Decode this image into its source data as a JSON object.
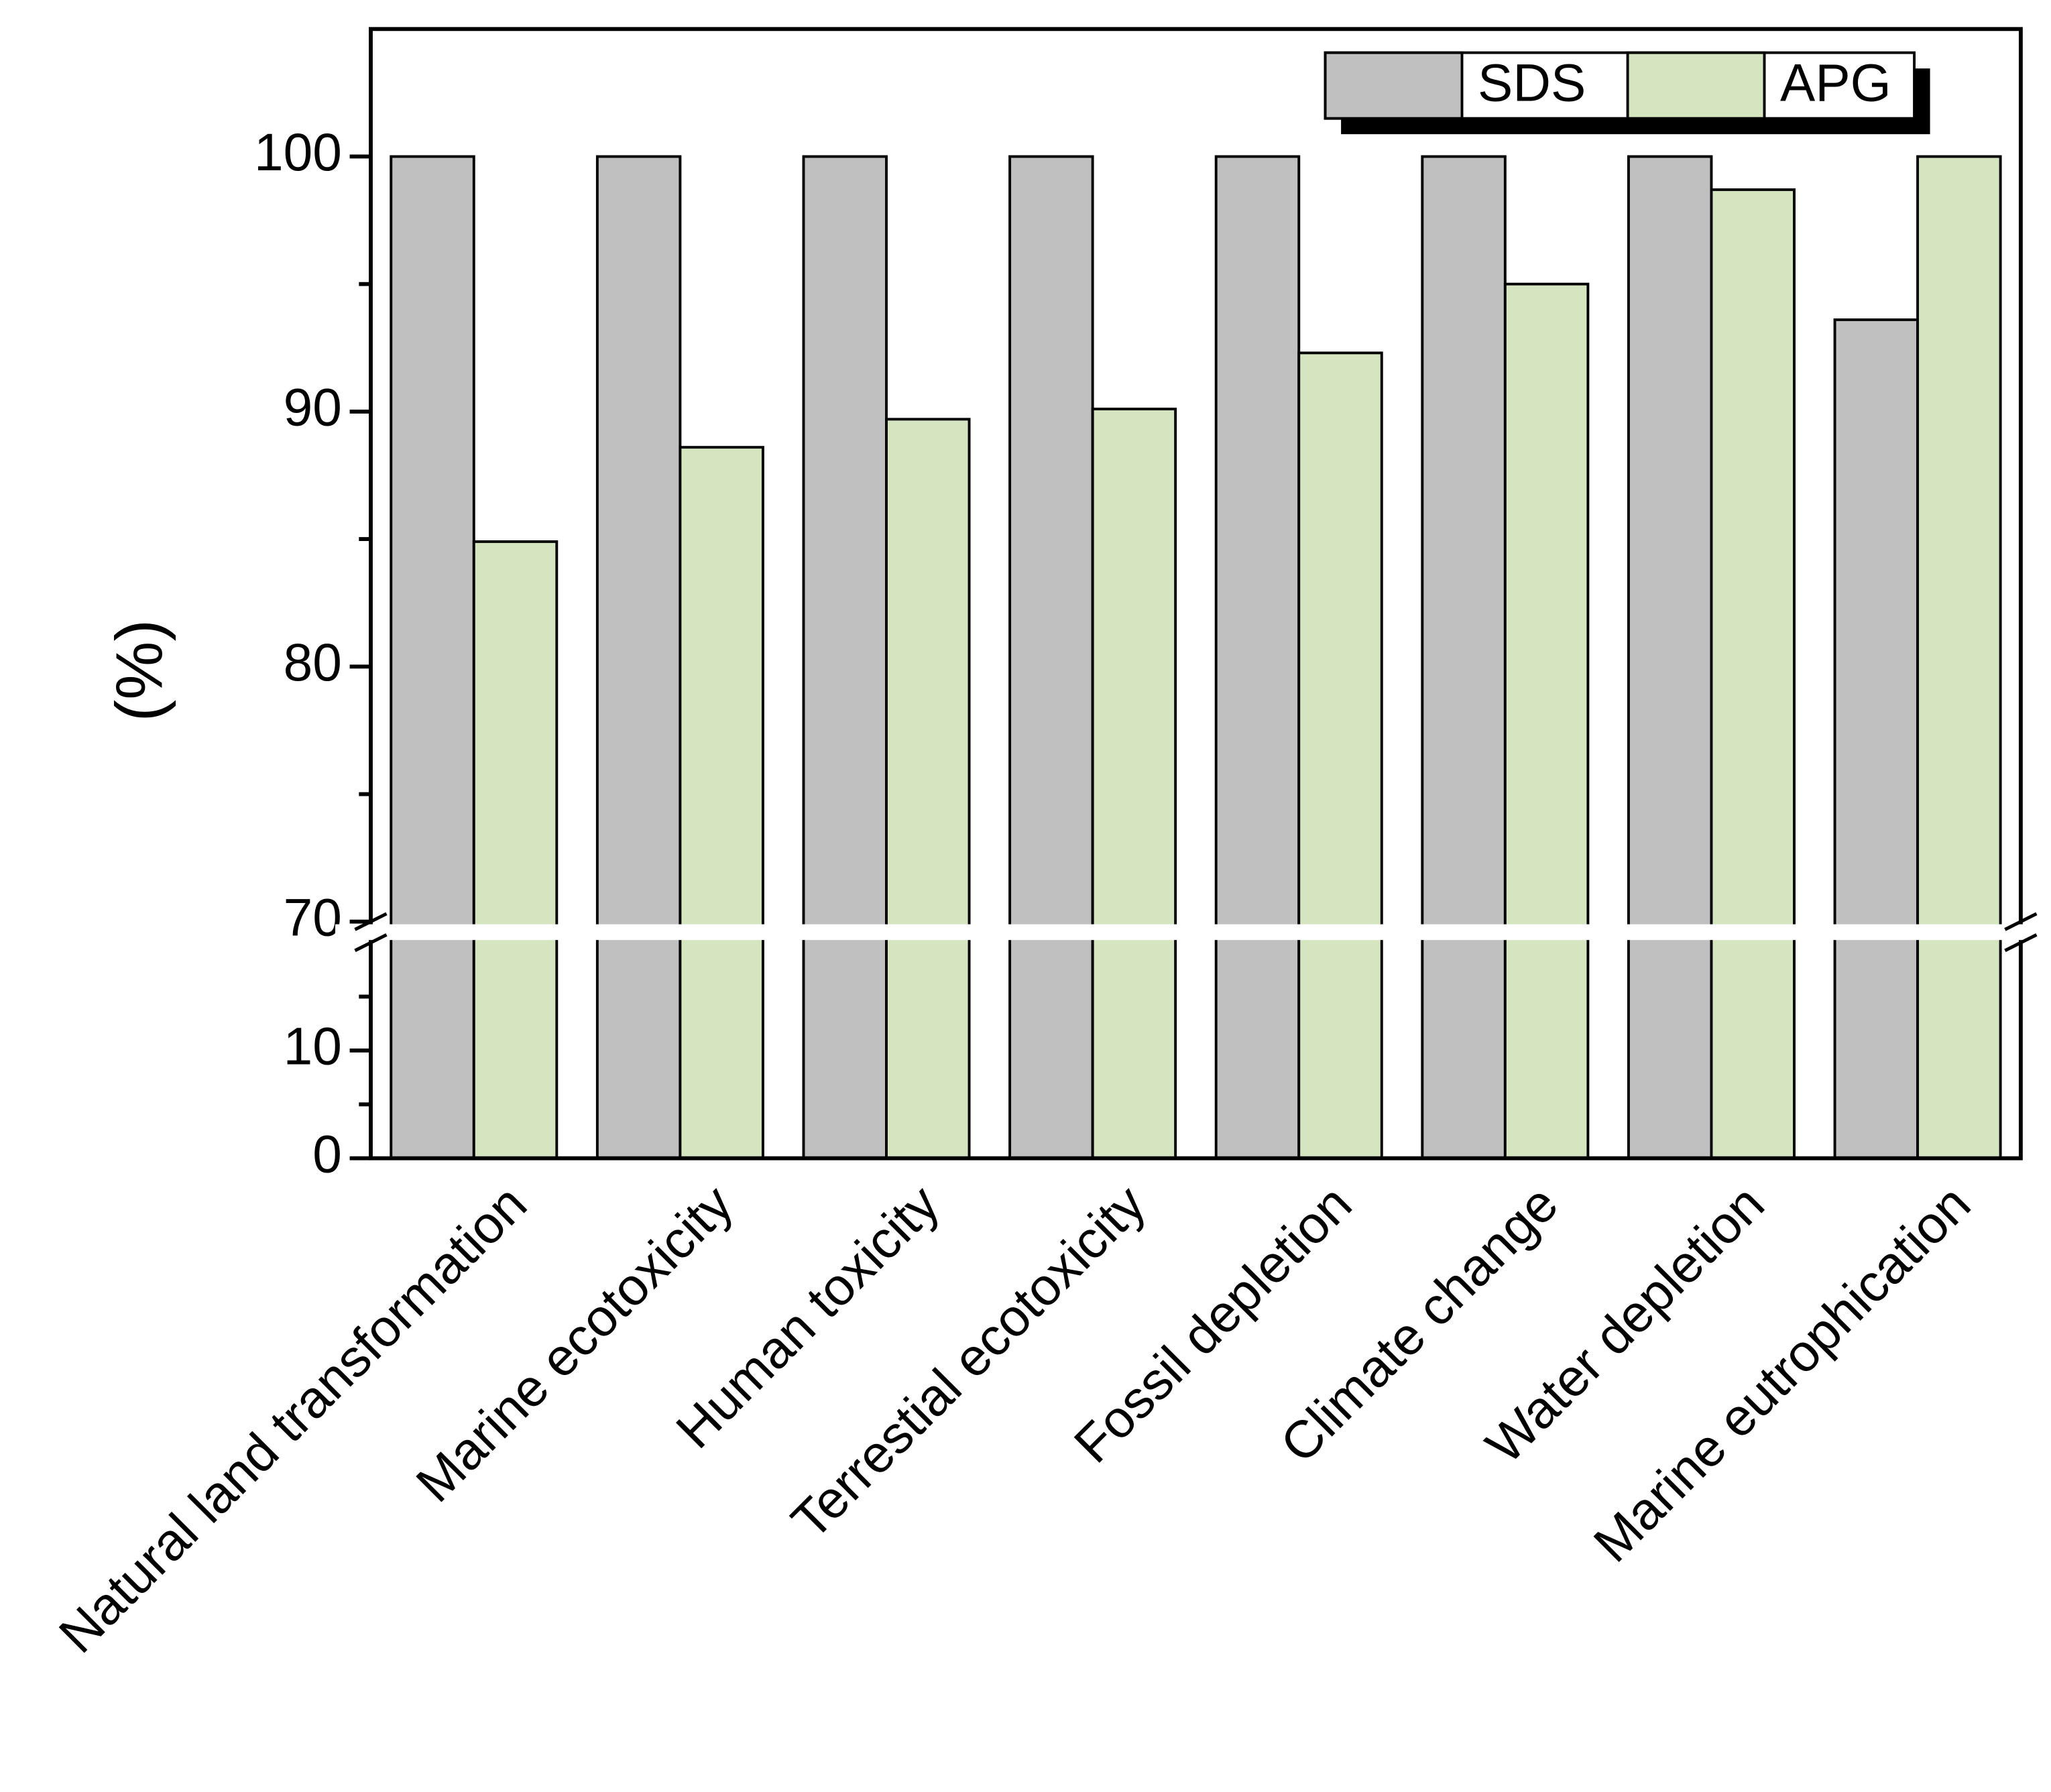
{
  "chart_data": {
    "type": "bar",
    "y_label": "(%)",
    "categories": [
      "Natural land transformation",
      "Marine ecotoxicity",
      "Human toxicity",
      "Terrestial ecotoxicity",
      "Fossil depletion",
      "Climate change",
      "Water depletion",
      "Marine eutrophication"
    ],
    "series": [
      {
        "name": "SDS",
        "color": "#c0c0c0",
        "values": [
          100,
          100,
          100,
          100,
          100,
          100,
          100,
          93.6
        ]
      },
      {
        "name": "APG",
        "color": "#d5e5c0",
        "values": [
          84.9,
          88.6,
          89.7,
          90.1,
          92.3,
          95.0,
          98.7,
          100
        ]
      }
    ],
    "ylim": [
      0,
      105
    ],
    "ybreak": [
      20,
      70
    ],
    "yticks": [
      0,
      10,
      70,
      80,
      90,
      100
    ],
    "yminor_ticks": [
      5,
      15,
      75,
      85,
      95
    ],
    "legend": "top-right"
  }
}
